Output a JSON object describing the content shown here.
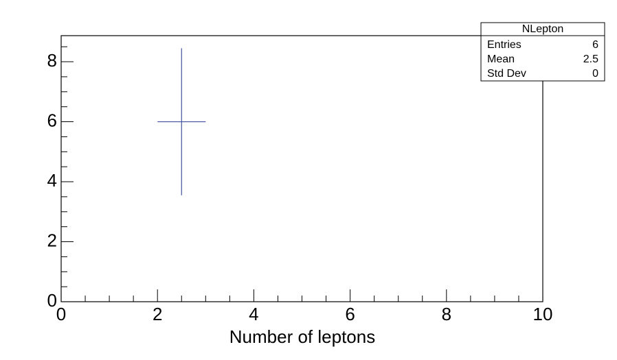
{
  "chart_data": {
    "type": "errorbar",
    "x": [
      2.5
    ],
    "xerr": [
      0.5
    ],
    "values": [
      6
    ],
    "errors": [
      2.45
    ],
    "color": "#3f4fa0",
    "xlabel": "Number of leptons",
    "xlim": [
      0,
      10
    ],
    "xticks": [
      0,
      2,
      4,
      6,
      8,
      10
    ],
    "xminorticks": [
      0.5,
      1,
      1.5,
      2.5,
      3,
      3.5,
      4.5,
      5,
      5.5,
      6.5,
      7,
      7.5,
      8.5,
      9,
      9.5
    ],
    "ylim": [
      0,
      8.87
    ],
    "yticks": [
      0,
      2,
      4,
      6,
      8
    ],
    "yminorticks": [
      0.5,
      1,
      1.5,
      2.5,
      3,
      3.5,
      4.5,
      5,
      5.5,
      6.5,
      7,
      7.5,
      8.5
    ],
    "stats": {
      "title": "NLepton",
      "rows": [
        {
          "label": "Entries",
          "value": 6
        },
        {
          "label": "Mean",
          "value": 2.5
        },
        {
          "label": "Std Dev",
          "value": 0
        }
      ]
    }
  }
}
